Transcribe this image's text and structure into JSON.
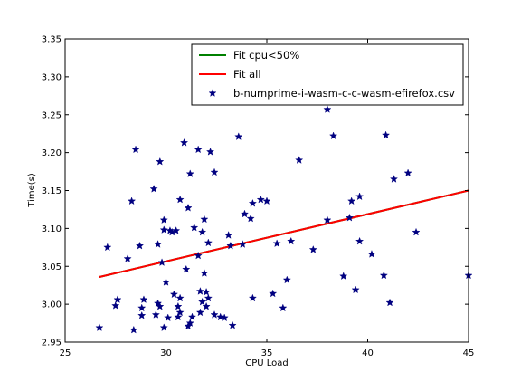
{
  "chart_data": {
    "type": "scatter",
    "xlabel": "CPU Load",
    "ylabel": "Time(s)",
    "xlim": [
      25,
      45
    ],
    "ylim": [
      2.95,
      3.35
    ],
    "x_ticks": [
      25,
      30,
      35,
      40,
      45
    ],
    "y_ticks": [
      2.95,
      3.0,
      3.05,
      3.1,
      3.15,
      3.2,
      3.25,
      3.3,
      3.35
    ],
    "grid": false,
    "legend_position": "top-right",
    "series": [
      {
        "name": "Fit cpu<50%",
        "kind": "line",
        "color": "#008000",
        "points": [
          [
            26.7,
            3.036
          ],
          [
            45.0,
            3.15
          ]
        ]
      },
      {
        "name": "Fit all",
        "kind": "line",
        "color": "#ff0000",
        "points": [
          [
            26.7,
            3.036
          ],
          [
            45.0,
            3.15
          ]
        ]
      },
      {
        "name": "b-numprime-i-wasm-c-c-wasm-efirefox.csv",
        "kind": "scatter",
        "marker": "star",
        "color": "#000080",
        "points": [
          [
            26.7,
            2.969
          ],
          [
            27.1,
            3.075
          ],
          [
            27.5,
            2.998
          ],
          [
            27.6,
            3.006
          ],
          [
            28.1,
            3.06
          ],
          [
            28.3,
            3.136
          ],
          [
            28.4,
            2.966
          ],
          [
            28.5,
            3.204
          ],
          [
            28.7,
            3.077
          ],
          [
            28.8,
            2.985
          ],
          [
            28.8,
            2.995
          ],
          [
            28.9,
            3.006
          ],
          [
            29.4,
            3.152
          ],
          [
            29.5,
            2.986
          ],
          [
            29.6,
            3.079
          ],
          [
            29.6,
            3.001
          ],
          [
            29.7,
            3.188
          ],
          [
            29.7,
            2.997
          ],
          [
            29.8,
            3.055
          ],
          [
            29.9,
            3.111
          ],
          [
            29.9,
            3.098
          ],
          [
            29.9,
            2.969
          ],
          [
            30.0,
            3.029
          ],
          [
            30.1,
            2.982
          ],
          [
            30.2,
            3.097
          ],
          [
            30.3,
            3.095
          ],
          [
            30.4,
            3.013
          ],
          [
            30.5,
            3.097
          ],
          [
            30.6,
            2.983
          ],
          [
            30.6,
            2.997
          ],
          [
            30.7,
            3.008
          ],
          [
            30.7,
            2.989
          ],
          [
            30.7,
            3.138
          ],
          [
            30.9,
            3.213
          ],
          [
            31.0,
            3.046
          ],
          [
            31.1,
            3.127
          ],
          [
            31.1,
            2.971
          ],
          [
            31.2,
            3.172
          ],
          [
            31.2,
            2.975
          ],
          [
            31.3,
            2.983
          ],
          [
            31.4,
            3.101
          ],
          [
            31.6,
            3.064
          ],
          [
            31.6,
            3.204
          ],
          [
            31.7,
            3.017
          ],
          [
            31.7,
            2.989
          ],
          [
            31.8,
            3.095
          ],
          [
            31.8,
            3.003
          ],
          [
            31.9,
            3.112
          ],
          [
            31.9,
            3.041
          ],
          [
            32.0,
            2.997
          ],
          [
            32.0,
            3.016
          ],
          [
            32.1,
            3.081
          ],
          [
            32.1,
            3.008
          ],
          [
            32.2,
            3.201
          ],
          [
            32.4,
            3.174
          ],
          [
            32.4,
            2.986
          ],
          [
            32.7,
            2.983
          ],
          [
            32.9,
            2.982
          ],
          [
            33.1,
            3.091
          ],
          [
            33.2,
            3.077
          ],
          [
            33.3,
            2.972
          ],
          [
            33.6,
            3.221
          ],
          [
            33.8,
            3.079
          ],
          [
            33.9,
            3.119
          ],
          [
            34.2,
            3.113
          ],
          [
            34.3,
            3.133
          ],
          [
            34.3,
            3.008
          ],
          [
            34.7,
            3.138
          ],
          [
            35.0,
            3.136
          ],
          [
            35.3,
            3.014
          ],
          [
            35.5,
            3.08
          ],
          [
            35.8,
            2.995
          ],
          [
            36.0,
            3.032
          ],
          [
            36.2,
            3.083
          ],
          [
            36.6,
            3.19
          ],
          [
            37.3,
            3.072
          ],
          [
            38.0,
            3.111
          ],
          [
            38.0,
            3.257
          ],
          [
            38.3,
            3.222
          ],
          [
            38.8,
            3.037
          ],
          [
            39.1,
            3.114
          ],
          [
            39.2,
            3.136
          ],
          [
            39.4,
            3.019
          ],
          [
            39.6,
            3.142
          ],
          [
            39.6,
            3.083
          ],
          [
            40.2,
            3.066
          ],
          [
            40.8,
            3.038
          ],
          [
            40.9,
            3.223
          ],
          [
            41.1,
            3.002
          ],
          [
            41.3,
            3.165
          ],
          [
            42.0,
            3.173
          ],
          [
            42.4,
            3.095
          ],
          [
            45.0,
            3.038
          ]
        ]
      }
    ]
  }
}
